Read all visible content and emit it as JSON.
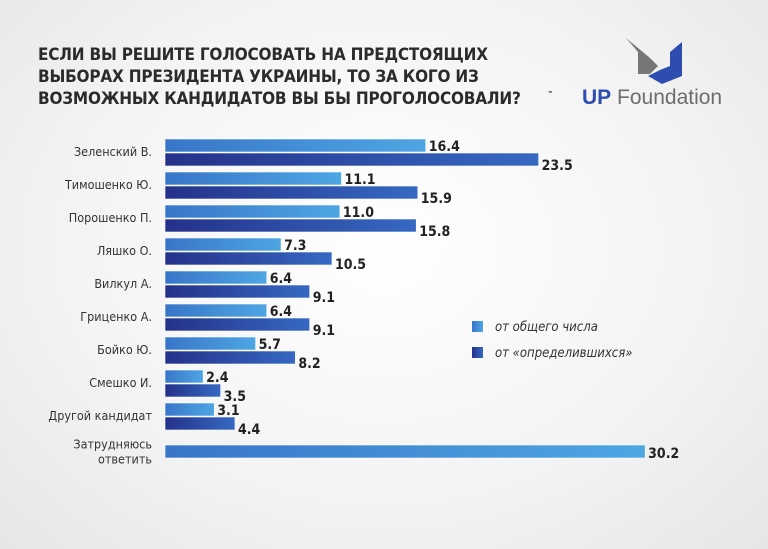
{
  "title": "ЕСЛИ ВЫ РЕШИТЕ ГОЛОСОВАТЬ НА ПРЕДСТОЯЩИХ ВЫБОРАХ ПРЕЗИДЕНТА УКРАИНЫ, ТО ЗА КОГО ИЗ ВОЗМОЖНЫХ КАНДИДАТОВ ВЫ БЫ ПРОГОЛОСОВАЛИ?",
  "logo": {
    "text_up": "UP",
    "text_rest": "Foundation",
    "dash": "-"
  },
  "colors": {
    "light": "#4a9fe0",
    "dark": "#2a3c9a"
  },
  "chart_data": {
    "type": "bar",
    "orientation": "horizontal",
    "categories": [
      "Зеленский В.",
      "Тимошенко Ю.",
      "Порошенко П.",
      "Ляшко О.",
      "Вилкул А.",
      "Гриценко А.",
      "Бойко Ю.",
      "Смешко И.",
      "Другой кандидат",
      "Затрудняюсь ответить"
    ],
    "series": [
      {
        "name": "от общего числа",
        "values": [
          16.4,
          11.1,
          11.0,
          7.3,
          6.4,
          6.4,
          5.7,
          2.4,
          3.1,
          30.2
        ]
      },
      {
        "name": "от «определившихся»",
        "values": [
          23.5,
          15.9,
          15.8,
          10.5,
          9.1,
          9.1,
          8.2,
          3.5,
          4.4,
          null
        ]
      }
    ],
    "value_labels": [
      [
        "16.4",
        "11.1",
        "11.0",
        "7.3",
        "6.4",
        "6.4",
        "5.7",
        "2.4",
        "3.1",
        "30.2"
      ],
      [
        "23.5",
        "15.9",
        "15.8",
        "10.5",
        "9.1",
        "9.1",
        "8.2",
        "3.5",
        "4.4",
        null
      ]
    ],
    "legend_position": "right",
    "grid": false
  }
}
